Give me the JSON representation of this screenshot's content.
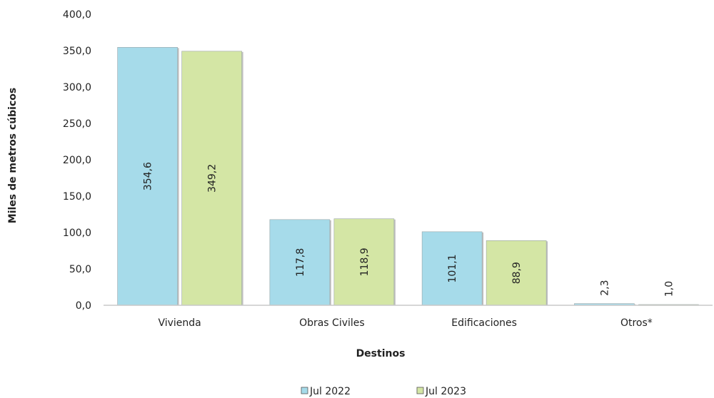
{
  "chart_data": {
    "type": "bar",
    "title": "",
    "xlabel": "Destinos",
    "ylabel": "Miles de metros cúbicos",
    "categories": [
      "Vivienda",
      "Obras Civiles",
      "Edificaciones",
      "Otros*"
    ],
    "series": [
      {
        "name": "Jul 2022",
        "values": [
          354.6,
          117.8,
          101.1,
          2.3
        ],
        "data_labels": [
          "354,6",
          "117,8",
          "101,1",
          "2,3"
        ],
        "color": "#a6dbea"
      },
      {
        "name": "Jul 2023",
        "values": [
          349.2,
          118.9,
          88.9,
          1.0
        ],
        "data_labels": [
          "349,2",
          "118,9",
          "88,9",
          "1,0"
        ],
        "color": "#d4e6a5"
      }
    ],
    "ylim": [
      0,
      400
    ],
    "yticks": [
      "0,0",
      "50,0",
      "100,0",
      "150,0",
      "200,0",
      "250,0",
      "300,0",
      "350,0",
      "400,0"
    ],
    "grid": false,
    "legend_position": "bottom"
  }
}
